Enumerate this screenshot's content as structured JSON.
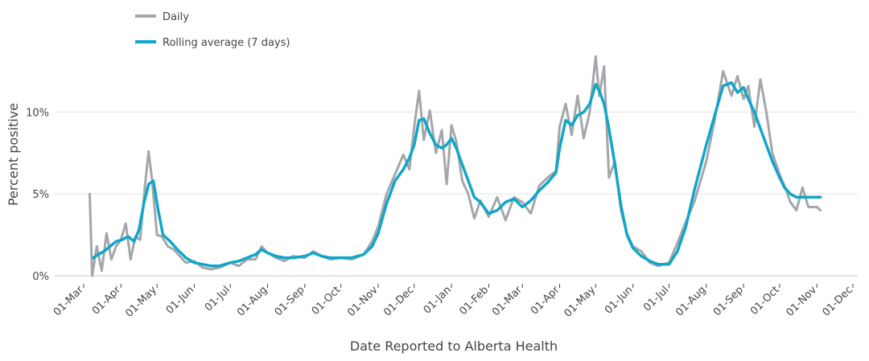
{
  "chart_data": {
    "type": "line",
    "xlabel": "Date Reported to Alberta Health",
    "ylabel": "Percent positive",
    "x_ticks": [
      "01-Mar",
      "01-Apr",
      "01-May",
      "01-Jun",
      "01-Jul",
      "01-Aug",
      "01-Sep",
      "01-Oct",
      "01-Nov",
      "01-Dec",
      "01-Jan",
      "01-Feb",
      "01-Mar",
      "01-Apr",
      "01-May",
      "01-Jun",
      "01-Jul",
      "01-Aug",
      "01-Sep",
      "01-Oct",
      "01-Nov",
      "01-Dec"
    ],
    "y_ticks": [
      "0%",
      "5%",
      "10%"
    ],
    "ylim": [
      0,
      14
    ],
    "grid": "horizontal",
    "legend_position": "top-left",
    "series": [
      {
        "name": "Daily",
        "color": "#a3a7ab",
        "x": [
          "2020-03-06",
          "2020-03-08",
          "2020-03-12",
          "2020-03-16",
          "2020-03-20",
          "2020-03-24",
          "2020-03-28",
          "2020-04-01",
          "2020-04-05",
          "2020-04-09",
          "2020-04-13",
          "2020-04-17",
          "2020-04-21",
          "2020-04-24",
          "2020-04-27",
          "2020-05-01",
          "2020-05-05",
          "2020-05-10",
          "2020-05-15",
          "2020-05-20",
          "2020-05-25",
          "2020-06-01",
          "2020-06-08",
          "2020-06-15",
          "2020-06-22",
          "2020-07-01",
          "2020-07-08",
          "2020-07-15",
          "2020-07-22",
          "2020-07-27",
          "2020-08-01",
          "2020-08-08",
          "2020-08-15",
          "2020-08-22",
          "2020-09-01",
          "2020-09-08",
          "2020-09-15",
          "2020-09-22",
          "2020-10-01",
          "2020-10-10",
          "2020-10-20",
          "2020-10-27",
          "2020-11-01",
          "2020-11-08",
          "2020-11-15",
          "2020-11-22",
          "2020-11-27",
          "2020-12-01",
          "2020-12-05",
          "2020-12-09",
          "2020-12-14",
          "2020-12-19",
          "2020-12-24",
          "2020-12-28",
          "2021-01-01",
          "2021-01-05",
          "2021-01-10",
          "2021-01-15",
          "2021-01-20",
          "2021-01-25",
          "2021-02-01",
          "2021-02-08",
          "2021-02-15",
          "2021-02-22",
          "2021-03-01",
          "2021-03-08",
          "2021-03-15",
          "2021-03-22",
          "2021-03-29",
          "2021-04-01",
          "2021-04-06",
          "2021-04-11",
          "2021-04-16",
          "2021-04-21",
          "2021-04-26",
          "2021-05-01",
          "2021-05-04",
          "2021-05-08",
          "2021-05-12",
          "2021-05-17",
          "2021-05-22",
          "2021-05-27",
          "2021-06-01",
          "2021-06-08",
          "2021-06-15",
          "2021-06-22",
          "2021-07-01",
          "2021-07-08",
          "2021-07-15",
          "2021-07-22",
          "2021-08-01",
          "2021-08-08",
          "2021-08-15",
          "2021-08-22",
          "2021-08-27",
          "2021-09-01",
          "2021-09-05",
          "2021-09-10",
          "2021-09-15",
          "2021-09-20",
          "2021-09-25",
          "2021-10-01",
          "2021-10-05",
          "2021-10-10",
          "2021-10-15",
          "2021-10-20",
          "2021-10-25",
          "2021-11-01",
          "2021-11-04"
        ],
        "values": [
          5.0,
          0.0,
          1.8,
          0.3,
          2.6,
          1.0,
          1.8,
          2.2,
          3.2,
          1.0,
          2.4,
          2.2,
          5.5,
          7.6,
          5.8,
          2.5,
          2.4,
          1.8,
          1.6,
          1.2,
          0.8,
          0.9,
          0.5,
          0.4,
          0.5,
          0.8,
          0.6,
          1.0,
          1.0,
          1.8,
          1.4,
          1.1,
          0.9,
          1.2,
          1.1,
          1.5,
          1.2,
          1.0,
          1.1,
          1.0,
          1.3,
          2.1,
          3.0,
          5.0,
          6.2,
          7.4,
          6.5,
          9.1,
          11.3,
          8.3,
          10.1,
          7.5,
          8.9,
          5.6,
          9.2,
          8.2,
          5.8,
          5.0,
          3.5,
          4.6,
          3.6,
          4.8,
          3.4,
          4.8,
          4.5,
          3.8,
          5.5,
          6.0,
          6.4,
          9.1,
          10.5,
          8.6,
          11.0,
          8.4,
          10.0,
          13.4,
          11.0,
          12.8,
          6.0,
          7.0,
          4.0,
          2.6,
          1.8,
          1.5,
          0.8,
          0.6,
          0.8,
          2.0,
          3.3,
          4.5,
          7.0,
          9.5,
          12.5,
          11.0,
          12.2,
          10.8,
          11.6,
          9.1,
          12.0,
          10.0,
          7.5,
          6.2,
          5.5,
          4.5,
          4.0,
          5.4,
          4.2,
          4.2,
          4.0
        ]
      },
      {
        "name": "Rolling average (7 days)",
        "color": "#11a6c8",
        "x": [
          "2020-03-09",
          "2020-03-13",
          "2020-03-18",
          "2020-03-23",
          "2020-03-28",
          "2020-04-02",
          "2020-04-07",
          "2020-04-12",
          "2020-04-16",
          "2020-04-20",
          "2020-04-24",
          "2020-04-28",
          "2020-05-02",
          "2020-05-06",
          "2020-05-12",
          "2020-05-18",
          "2020-05-25",
          "2020-06-01",
          "2020-06-08",
          "2020-06-15",
          "2020-06-22",
          "2020-07-01",
          "2020-07-08",
          "2020-07-15",
          "2020-07-22",
          "2020-07-27",
          "2020-08-01",
          "2020-08-08",
          "2020-08-15",
          "2020-08-22",
          "2020-09-01",
          "2020-09-08",
          "2020-09-15",
          "2020-09-22",
          "2020-10-01",
          "2020-10-10",
          "2020-10-20",
          "2020-10-27",
          "2020-11-01",
          "2020-11-08",
          "2020-11-15",
          "2020-11-22",
          "2020-11-27",
          "2020-12-01",
          "2020-12-05",
          "2020-12-09",
          "2020-12-14",
          "2020-12-19",
          "2020-12-24",
          "2020-12-28",
          "2021-01-01",
          "2021-01-05",
          "2021-01-10",
          "2021-01-15",
          "2021-01-20",
          "2021-01-25",
          "2021-02-01",
          "2021-02-08",
          "2021-02-15",
          "2021-02-22",
          "2021-03-01",
          "2021-03-08",
          "2021-03-15",
          "2021-03-22",
          "2021-03-29",
          "2021-04-01",
          "2021-04-06",
          "2021-04-11",
          "2021-04-16",
          "2021-04-21",
          "2021-04-26",
          "2021-05-01",
          "2021-05-04",
          "2021-05-08",
          "2021-05-12",
          "2021-05-17",
          "2021-05-22",
          "2021-05-27",
          "2021-06-01",
          "2021-06-08",
          "2021-06-15",
          "2021-06-22",
          "2021-07-01",
          "2021-07-08",
          "2021-07-15",
          "2021-07-22",
          "2021-08-01",
          "2021-08-08",
          "2021-08-15",
          "2021-08-22",
          "2021-08-27",
          "2021-09-01",
          "2021-09-05",
          "2021-09-10",
          "2021-09-15",
          "2021-09-20",
          "2021-09-25",
          "2021-10-01",
          "2021-10-05",
          "2021-10-10",
          "2021-10-15",
          "2021-10-20",
          "2021-10-25",
          "2021-11-01",
          "2021-11-04"
        ],
        "values": [
          1.1,
          1.3,
          1.5,
          1.8,
          2.1,
          2.2,
          2.4,
          2.1,
          2.8,
          4.4,
          5.6,
          5.8,
          4.0,
          2.5,
          2.1,
          1.6,
          1.1,
          0.8,
          0.7,
          0.6,
          0.6,
          0.8,
          0.9,
          1.1,
          1.3,
          1.6,
          1.4,
          1.2,
          1.1,
          1.1,
          1.2,
          1.4,
          1.2,
          1.1,
          1.1,
          1.1,
          1.3,
          1.8,
          2.6,
          4.4,
          5.8,
          6.5,
          7.2,
          8.0,
          9.5,
          9.6,
          8.7,
          8.0,
          7.8,
          8.0,
          8.4,
          7.8,
          6.8,
          5.8,
          4.8,
          4.5,
          3.8,
          4.0,
          4.5,
          4.7,
          4.2,
          4.6,
          5.2,
          5.7,
          6.3,
          7.8,
          9.5,
          9.2,
          9.8,
          10.0,
          10.5,
          11.7,
          11.3,
          10.5,
          9.0,
          6.8,
          4.3,
          2.5,
          1.7,
          1.2,
          0.9,
          0.7,
          0.7,
          1.5,
          3.0,
          5.2,
          8.0,
          9.8,
          11.6,
          11.8,
          11.2,
          11.5,
          10.8,
          10.0,
          9.0,
          8.0,
          7.0,
          6.0,
          5.4,
          5.0,
          4.8,
          4.8,
          4.8,
          4.8,
          4.8
        ]
      }
    ]
  }
}
